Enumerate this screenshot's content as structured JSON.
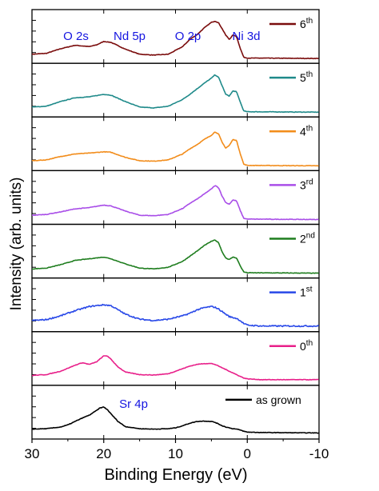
{
  "chart_data": {
    "type": "line",
    "layout": "stacked-panels",
    "xlabel": "Binding Energy (eV)",
    "ylabel": "Intensity (arb. units)",
    "xlim": [
      30,
      -10
    ],
    "x_reversed": true,
    "x_ticks": [
      30,
      20,
      10,
      0,
      -10
    ],
    "x_tick_labels": [
      "30",
      "20",
      "10",
      "0",
      "-10"
    ],
    "y_tick_labels_shown": false,
    "grid": false,
    "legend_placement": "top-right of each panel",
    "peak_labels": [
      {
        "text": "O 2s",
        "x": 25
      },
      {
        "text": "Nd 5p",
        "x": 17.5
      },
      {
        "text": "O 2p",
        "x": 8.5
      },
      {
        "text": "Ni 3d",
        "x": 1.8
      },
      {
        "text": "Sr 4p",
        "x": 16.5
      }
    ],
    "peak_label_color": "#1515e0",
    "panels": [
      {
        "name": "6th",
        "base": "6",
        "sup": "th",
        "color": "#7a0c0c",
        "points": [
          [
            30,
            0.1
          ],
          [
            28,
            0.12
          ],
          [
            26,
            0.23
          ],
          [
            24,
            0.31
          ],
          [
            22,
            0.28
          ],
          [
            21,
            0.32
          ],
          [
            20,
            0.4
          ],
          [
            19,
            0.38
          ],
          [
            17,
            0.22
          ],
          [
            15,
            0.1
          ],
          [
            13,
            0.08
          ],
          [
            11,
            0.1
          ],
          [
            9,
            0.28
          ],
          [
            8,
            0.45
          ],
          [
            7,
            0.56
          ],
          [
            6,
            0.72
          ],
          [
            5,
            0.85
          ],
          [
            4.5,
            0.88
          ],
          [
            4,
            0.84
          ],
          [
            3.5,
            0.7
          ],
          [
            3,
            0.55
          ],
          [
            2.5,
            0.45
          ],
          [
            2,
            0.55
          ],
          [
            1.5,
            0.52
          ],
          [
            1,
            0.25
          ],
          [
            0.5,
            0.03
          ],
          [
            0,
            0.01
          ],
          [
            -10,
            0.0
          ]
        ]
      },
      {
        "name": "5th",
        "base": "5",
        "sup": "th",
        "color": "#1f8a8a",
        "points": [
          [
            30,
            0.12
          ],
          [
            28,
            0.14
          ],
          [
            26,
            0.25
          ],
          [
            24,
            0.34
          ],
          [
            22,
            0.36
          ],
          [
            20,
            0.42
          ],
          [
            19,
            0.4
          ],
          [
            17,
            0.25
          ],
          [
            15,
            0.12
          ],
          [
            13,
            0.1
          ],
          [
            11,
            0.14
          ],
          [
            9,
            0.3
          ],
          [
            8,
            0.42
          ],
          [
            7,
            0.55
          ],
          [
            6,
            0.68
          ],
          [
            5,
            0.8
          ],
          [
            4.5,
            0.88
          ],
          [
            4,
            0.82
          ],
          [
            3.5,
            0.62
          ],
          [
            3,
            0.42
          ],
          [
            2.5,
            0.38
          ],
          [
            2,
            0.5
          ],
          [
            1.5,
            0.48
          ],
          [
            1,
            0.25
          ],
          [
            0.5,
            0.03
          ],
          [
            0,
            0.01
          ],
          [
            -10,
            0.0
          ]
        ]
      },
      {
        "name": "4th",
        "base": "4",
        "sup": "th",
        "color": "#f28c1a",
        "points": [
          [
            30,
            0.12
          ],
          [
            28,
            0.14
          ],
          [
            26,
            0.22
          ],
          [
            24,
            0.28
          ],
          [
            22,
            0.3
          ],
          [
            20,
            0.33
          ],
          [
            19,
            0.32
          ],
          [
            17,
            0.2
          ],
          [
            15,
            0.12
          ],
          [
            13,
            0.11
          ],
          [
            11,
            0.14
          ],
          [
            9,
            0.28
          ],
          [
            8,
            0.4
          ],
          [
            7,
            0.5
          ],
          [
            6,
            0.62
          ],
          [
            5,
            0.72
          ],
          [
            4.5,
            0.8
          ],
          [
            4,
            0.75
          ],
          [
            3.5,
            0.55
          ],
          [
            3,
            0.42
          ],
          [
            2.5,
            0.48
          ],
          [
            2,
            0.62
          ],
          [
            1.5,
            0.6
          ],
          [
            1,
            0.3
          ],
          [
            0.5,
            0.04
          ],
          [
            0,
            0.01
          ],
          [
            -10,
            0.0
          ]
        ]
      },
      {
        "name": "3rd",
        "base": "3",
        "sup": "rd",
        "color": "#a94ee8",
        "points": [
          [
            30,
            0.1
          ],
          [
            28,
            0.12
          ],
          [
            26,
            0.18
          ],
          [
            24,
            0.25
          ],
          [
            22,
            0.28
          ],
          [
            20,
            0.34
          ],
          [
            19,
            0.32
          ],
          [
            17,
            0.2
          ],
          [
            15,
            0.1
          ],
          [
            13,
            0.09
          ],
          [
            11,
            0.12
          ],
          [
            9,
            0.26
          ],
          [
            8,
            0.38
          ],
          [
            7,
            0.48
          ],
          [
            6,
            0.6
          ],
          [
            5,
            0.72
          ],
          [
            4.5,
            0.8
          ],
          [
            4,
            0.75
          ],
          [
            3.5,
            0.55
          ],
          [
            3,
            0.4
          ],
          [
            2.5,
            0.36
          ],
          [
            2,
            0.46
          ],
          [
            1.5,
            0.44
          ],
          [
            1,
            0.22
          ],
          [
            0.5,
            0.03
          ],
          [
            0,
            0.01
          ],
          [
            -10,
            0.0
          ]
        ]
      },
      {
        "name": "2nd",
        "base": "2",
        "sup": "nd",
        "color": "#1e7d1e",
        "points": [
          [
            30,
            0.1
          ],
          [
            28,
            0.12
          ],
          [
            26,
            0.2
          ],
          [
            24,
            0.3
          ],
          [
            22,
            0.34
          ],
          [
            20,
            0.38
          ],
          [
            19,
            0.34
          ],
          [
            17,
            0.22
          ],
          [
            15,
            0.12
          ],
          [
            13,
            0.1
          ],
          [
            11,
            0.14
          ],
          [
            9,
            0.28
          ],
          [
            8,
            0.4
          ],
          [
            7,
            0.52
          ],
          [
            6,
            0.65
          ],
          [
            5,
            0.75
          ],
          [
            4.5,
            0.78
          ],
          [
            4,
            0.72
          ],
          [
            3.5,
            0.5
          ],
          [
            3,
            0.36
          ],
          [
            2.5,
            0.32
          ],
          [
            2,
            0.38
          ],
          [
            1.5,
            0.36
          ],
          [
            1,
            0.18
          ],
          [
            0.5,
            0.03
          ],
          [
            0,
            0.01
          ],
          [
            -10,
            0.0
          ]
        ]
      },
      {
        "name": "1st",
        "base": "1",
        "sup": "st",
        "color": "#2848e8",
        "points": [
          [
            30,
            0.15
          ],
          [
            28,
            0.17
          ],
          [
            26,
            0.26
          ],
          [
            24,
            0.38
          ],
          [
            22,
            0.48
          ],
          [
            20,
            0.52
          ],
          [
            19,
            0.5
          ],
          [
            17,
            0.3
          ],
          [
            15,
            0.18
          ],
          [
            13,
            0.15
          ],
          [
            11,
            0.18
          ],
          [
            9,
            0.26
          ],
          [
            8,
            0.32
          ],
          [
            7,
            0.4
          ],
          [
            6,
            0.45
          ],
          [
            5,
            0.48
          ],
          [
            4.5,
            0.46
          ],
          [
            4,
            0.42
          ],
          [
            3.5,
            0.36
          ],
          [
            3,
            0.3
          ],
          [
            2.5,
            0.24
          ],
          [
            2,
            0.22
          ],
          [
            1.5,
            0.2
          ],
          [
            1,
            0.15
          ],
          [
            0.5,
            0.08
          ],
          [
            0,
            0.04
          ],
          [
            -2,
            0.02
          ],
          [
            -10,
            0.02
          ]
        ]
      },
      {
        "name": "0th",
        "base": "0",
        "sup": "th",
        "color": "#e8208a",
        "points": [
          [
            30,
            0.12
          ],
          [
            28,
            0.14
          ],
          [
            26,
            0.22
          ],
          [
            24,
            0.36
          ],
          [
            23,
            0.42
          ],
          [
            22,
            0.38
          ],
          [
            21,
            0.44
          ],
          [
            20,
            0.58
          ],
          [
            19.5,
            0.58
          ],
          [
            19,
            0.5
          ],
          [
            18,
            0.32
          ],
          [
            17,
            0.2
          ],
          [
            15,
            0.14
          ],
          [
            13,
            0.13
          ],
          [
            11,
            0.16
          ],
          [
            9,
            0.28
          ],
          [
            8,
            0.34
          ],
          [
            7,
            0.38
          ],
          [
            6,
            0.4
          ],
          [
            5,
            0.4
          ],
          [
            4.5,
            0.38
          ],
          [
            4,
            0.34
          ],
          [
            3.5,
            0.3
          ],
          [
            3,
            0.26
          ],
          [
            2.5,
            0.22
          ],
          [
            2,
            0.18
          ],
          [
            1.5,
            0.14
          ],
          [
            1,
            0.1
          ],
          [
            0.5,
            0.06
          ],
          [
            0,
            0.04
          ],
          [
            -2,
            0.02
          ],
          [
            -10,
            0.02
          ]
        ]
      },
      {
        "name": "as grown",
        "base": "as grown",
        "sup": "",
        "color": "#000000",
        "points": [
          [
            30,
            0.12
          ],
          [
            28,
            0.13
          ],
          [
            26,
            0.17
          ],
          [
            25,
            0.22
          ],
          [
            24,
            0.3
          ],
          [
            23,
            0.38
          ],
          [
            22,
            0.45
          ],
          [
            21,
            0.56
          ],
          [
            20.5,
            0.62
          ],
          [
            20,
            0.64
          ],
          [
            19.5,
            0.58
          ],
          [
            19,
            0.48
          ],
          [
            18,
            0.3
          ],
          [
            17,
            0.18
          ],
          [
            15,
            0.13
          ],
          [
            13,
            0.12
          ],
          [
            11,
            0.13
          ],
          [
            10,
            0.15
          ],
          [
            9,
            0.2
          ],
          [
            8,
            0.26
          ],
          [
            7,
            0.3
          ],
          [
            6,
            0.31
          ],
          [
            5,
            0.3
          ],
          [
            4.5,
            0.28
          ],
          [
            4,
            0.24
          ],
          [
            3.5,
            0.2
          ],
          [
            3,
            0.17
          ],
          [
            2.5,
            0.15
          ],
          [
            2,
            0.13
          ],
          [
            1.5,
            0.12
          ],
          [
            1,
            0.1
          ],
          [
            0.5,
            0.07
          ],
          [
            0,
            0.05
          ],
          [
            -2,
            0.04
          ],
          [
            -10,
            0.03
          ]
        ]
      }
    ]
  }
}
